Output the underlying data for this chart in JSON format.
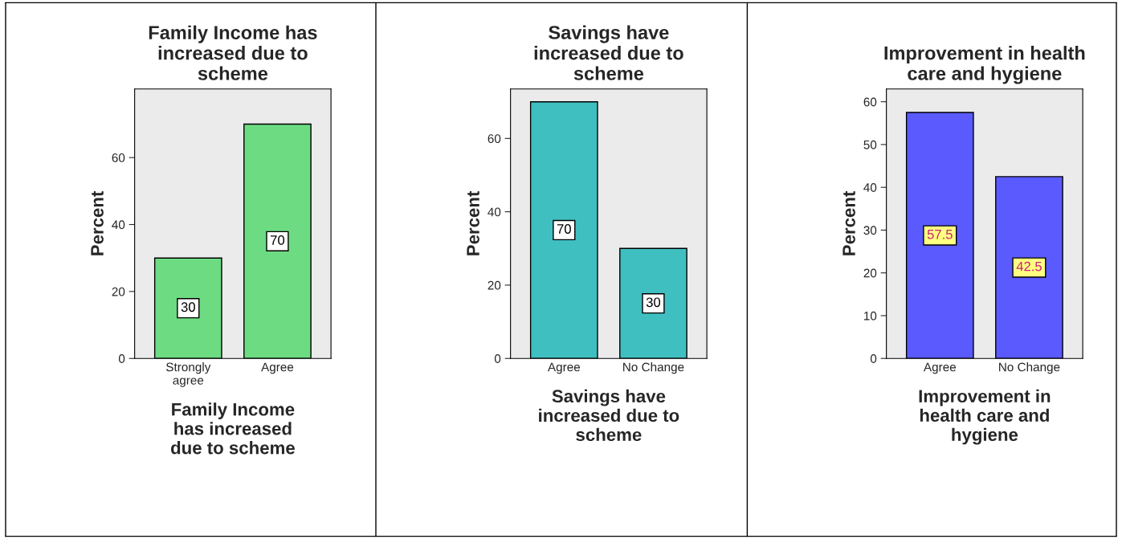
{
  "chart_data": [
    {
      "type": "bar",
      "title": "Family Income has\nincreased due to\nscheme",
      "categories": [
        "Strongly\nagree",
        "Agree"
      ],
      "values": [
        30,
        70
      ],
      "color": "#6ddb82",
      "ylabel": "Percent",
      "xlabel": "Family Income\nhas increased\ndue to scheme",
      "ylim": [
        0,
        80.5
      ],
      "yticks": [
        0,
        20,
        40,
        60
      ],
      "data_labels": true,
      "grid": false,
      "legend": false
    },
    {
      "type": "bar",
      "title": "Savings have\nincreased due to\nscheme",
      "categories": [
        "Agree",
        "No Change"
      ],
      "values": [
        70,
        30
      ],
      "color": "#40bfc1",
      "ylabel": "Percent",
      "xlabel": "Savings have\nincreased due to\nscheme",
      "ylim": [
        0,
        73.5
      ],
      "yticks": [
        0,
        20,
        40,
        60
      ],
      "data_labels": true,
      "grid": false,
      "legend": false
    },
    {
      "type": "bar",
      "title": "Improvement in health\ncare and hygiene",
      "categories": [
        "Agree",
        "No Change"
      ],
      "values": [
        57.5,
        42.5
      ],
      "color": "#5a5aff",
      "ylabel": "Percent",
      "xlabel": "Improvement in\nhealth care and\nhygiene",
      "ylim": [
        0,
        63
      ],
      "yticks": [
        0,
        10,
        20,
        30,
        40,
        50,
        60
      ],
      "data_labels": true,
      "grid": false,
      "legend": false
    }
  ]
}
